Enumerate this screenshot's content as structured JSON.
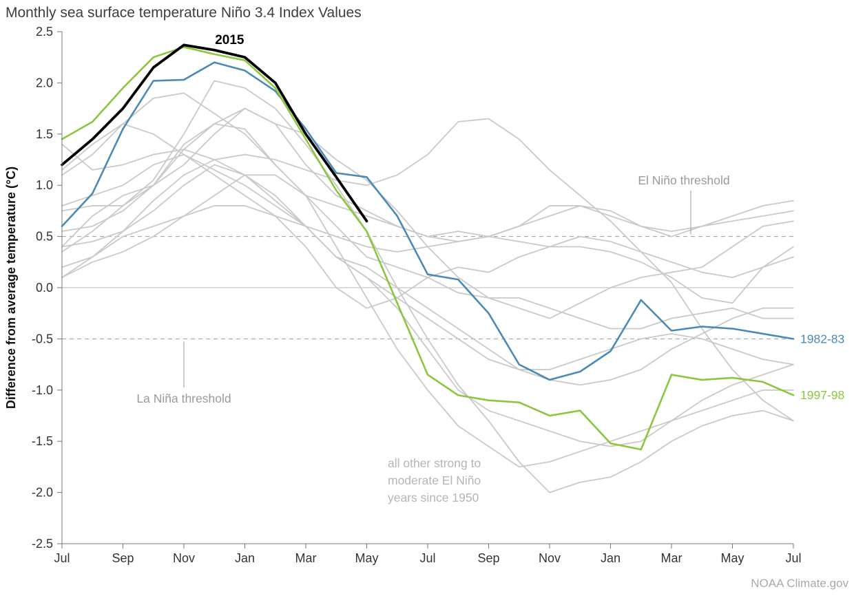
{
  "title": "Monthly sea surface temperature Niño 3.4 Index Values",
  "y_axis_label": "Difference from average temperature (°C)",
  "attribution": "NOAA Climate.gov",
  "colors": {
    "line_2015": "#000000",
    "line_1982": "#4a8ab5",
    "line_1997": "#8cc63f",
    "line_other": "#c9c9c9",
    "axis": "#777777",
    "tick_text": "#333333",
    "zero_line": "#c6c6c6",
    "threshold_line": "#9a9a9a",
    "annotation_gray": "#9a9a9a",
    "note_gray": "#b5b5b5"
  },
  "chart_data": {
    "type": "line",
    "title": "Monthly sea surface temperature Niño 3.4 Index Values",
    "xlabel": "",
    "ylabel": "Difference from average temperature (°C)",
    "months_span": 25,
    "x_tick_positions": [
      0,
      2,
      4,
      6,
      8,
      10,
      12,
      14,
      16,
      18,
      20,
      22,
      24
    ],
    "x_tick_labels": [
      "Jul",
      "Sep",
      "Nov",
      "Jan",
      "Mar",
      "May",
      "Jul",
      "Sep",
      "Nov",
      "Jan",
      "Mar",
      "May",
      "Jul"
    ],
    "y_tick_labels": [
      "2.5",
      "2.0",
      "1.5",
      "1.0",
      "0.5",
      "0.0",
      "-0.5",
      "-1.0",
      "-1.5",
      "-2.0",
      "-2.5"
    ],
    "y_tick_values": [
      2.5,
      2.0,
      1.5,
      1.0,
      0.5,
      0.0,
      -0.5,
      -1.0,
      -1.5,
      -2.0,
      -2.5
    ],
    "ylim": [
      -2.5,
      2.5
    ],
    "zero_line_value": 0,
    "grid": false,
    "thresholds": {
      "el_nino": {
        "value": 0.5,
        "label": "El Niño threshold"
      },
      "la_nina": {
        "value": -0.5,
        "label": "La Niña threshold"
      }
    },
    "note": [
      "all other strong to",
      "moderate El Niño",
      "years since 1950"
    ],
    "series": [
      {
        "name": "other-1",
        "label": "",
        "role": "other",
        "values": [
          0.35,
          0.55,
          0.8,
          1.05,
          1.5,
          2.02,
          1.95,
          1.75,
          1.4,
          1.0,
          0.55,
          0.0,
          -0.5,
          -0.95,
          -1.3,
          -1.7,
          -2.0,
          -1.9,
          -1.85,
          -1.7,
          -1.5,
          -1.35,
          -1.25,
          -1.2,
          -1.3
        ]
      },
      {
        "name": "other-2",
        "label": "",
        "role": "other",
        "values": [
          0.4,
          0.7,
          0.9,
          1.0,
          1.2,
          1.5,
          1.75,
          1.6,
          1.2,
          0.9,
          0.75,
          0.6,
          0.5,
          0.55,
          0.5,
          0.45,
          0.4,
          0.5,
          0.45,
          0.35,
          0.25,
          0.15,
          0.1,
          0.2,
          0.3
        ]
      },
      {
        "name": "other-3",
        "label": "",
        "role": "other",
        "values": [
          0.1,
          0.3,
          0.55,
          0.85,
          1.1,
          1.25,
          1.3,
          1.25,
          1.15,
          1.05,
          1.0,
          1.1,
          1.3,
          1.62,
          1.65,
          1.45,
          1.15,
          0.9,
          0.65,
          0.35,
          0.05,
          -0.4,
          -0.8,
          -1.1,
          -1.3
        ]
      },
      {
        "name": "other-4",
        "label": "",
        "role": "other",
        "values": [
          0.75,
          0.8,
          0.8,
          1.0,
          1.4,
          1.6,
          1.75,
          1.6,
          1.5,
          1.25,
          1.05,
          0.75,
          0.4,
          0.1,
          -0.1,
          -0.2,
          -0.3,
          -0.15,
          0.0,
          0.1,
          0.15,
          0.2,
          0.4,
          0.6,
          0.65
        ]
      },
      {
        "name": "other-5",
        "label": "",
        "role": "other",
        "values": [
          1.4,
          1.15,
          1.2,
          1.3,
          1.35,
          1.25,
          1.1,
          0.9,
          0.6,
          0.3,
          0.1,
          -0.1,
          -0.3,
          -0.5,
          -0.7,
          -0.8,
          -0.8,
          -0.7,
          -0.6,
          -0.5,
          -0.45,
          -0.5,
          -0.6,
          -0.7,
          -0.75
        ]
      },
      {
        "name": "other-6",
        "label": "",
        "role": "other",
        "values": [
          1.1,
          1.3,
          1.6,
          1.85,
          1.9,
          1.7,
          1.5,
          1.2,
          0.9,
          0.6,
          0.3,
          0.2,
          0.1,
          -0.05,
          -0.1,
          -0.1,
          -0.2,
          -0.3,
          -0.4,
          -0.4,
          -0.3,
          -0.25,
          -0.2,
          -0.3,
          -0.3
        ]
      },
      {
        "name": "other-7",
        "label": "",
        "role": "other",
        "values": [
          0.8,
          0.9,
          1.0,
          1.2,
          1.3,
          1.1,
          0.9,
          0.7,
          0.4,
          0.0,
          -0.2,
          -0.1,
          0.1,
          0.2,
          0.15,
          0.3,
          0.4,
          0.4,
          0.35,
          0.25,
          0.1,
          -0.1,
          -0.15,
          0.2,
          0.4
        ]
      },
      {
        "name": "other-8",
        "label": "",
        "role": "other",
        "values": [
          0.55,
          0.6,
          0.75,
          1.0,
          1.35,
          1.6,
          1.55,
          1.2,
          0.9,
          0.4,
          -0.1,
          -0.6,
          -1.0,
          -1.35,
          -1.55,
          -1.75,
          -1.7,
          -1.6,
          -1.5,
          -1.4,
          -1.3,
          -1.2,
          -1.1,
          -1.0,
          -1.0
        ]
      },
      {
        "name": "other-9",
        "label": "",
        "role": "other",
        "values": [
          0.4,
          0.45,
          0.55,
          0.75,
          1.0,
          1.2,
          1.1,
          0.85,
          0.6,
          0.3,
          0.2,
          0.0,
          -0.2,
          -0.4,
          -0.6,
          -0.8,
          -0.9,
          -0.95,
          -0.9,
          -0.8,
          -0.6,
          -0.45,
          -0.3,
          -0.2,
          -0.2
        ]
      },
      {
        "name": "other-10",
        "label": "",
        "role": "other",
        "values": [
          0.1,
          0.25,
          0.35,
          0.5,
          0.7,
          0.9,
          1.1,
          1.1,
          0.9,
          0.8,
          0.7,
          0.6,
          0.5,
          0.45,
          0.5,
          0.6,
          0.7,
          0.8,
          0.75,
          0.6,
          0.5,
          0.6,
          0.7,
          0.8,
          0.85
        ]
      },
      {
        "name": "other-11",
        "label": "",
        "role": "other",
        "values": [
          0.2,
          0.3,
          0.5,
          0.6,
          0.7,
          0.8,
          0.8,
          0.7,
          0.6,
          0.5,
          0.4,
          0.35,
          0.4,
          0.45,
          0.5,
          0.6,
          0.8,
          0.8,
          0.7,
          0.6,
          0.55,
          0.6,
          0.65,
          0.7,
          0.75
        ]
      },
      {
        "name": "other-12",
        "label": "",
        "role": "other",
        "values": [
          1.15,
          1.4,
          1.6,
          1.5,
          1.3,
          1.15,
          1.0,
          0.8,
          0.6,
          0.3,
          0.1,
          -0.2,
          -0.6,
          -1.0,
          -1.2,
          -1.3,
          -1.4,
          -1.5,
          -1.55,
          -1.5,
          -1.3,
          -1.1,
          -0.95,
          -0.85,
          -0.75
        ]
      },
      {
        "name": "1982-83",
        "label": "1982-83",
        "role": "blue",
        "values": [
          0.6,
          0.92,
          1.55,
          2.02,
          2.03,
          2.2,
          2.12,
          1.92,
          1.55,
          1.12,
          1.08,
          0.7,
          0.13,
          0.08,
          -0.25,
          -0.75,
          -0.9,
          -0.82,
          -0.62,
          -0.12,
          -0.42,
          -0.38,
          -0.4,
          -0.45,
          -0.5
        ]
      },
      {
        "name": "1997-98",
        "label": "1997-98",
        "role": "green",
        "values": [
          1.45,
          1.62,
          1.95,
          2.25,
          2.35,
          2.28,
          2.22,
          1.95,
          1.45,
          0.95,
          0.55,
          -0.15,
          -0.85,
          -1.05,
          -1.1,
          -1.12,
          -1.25,
          -1.2,
          -1.52,
          -1.58,
          -0.85,
          -0.9,
          -0.88,
          -0.92,
          -1.05
        ]
      },
      {
        "name": "2015",
        "label": "2015",
        "role": "black",
        "values": [
          1.2,
          1.45,
          1.75,
          2.15,
          2.37,
          2.32,
          2.25,
          2.0,
          1.5,
          1.08,
          0.65
        ]
      }
    ]
  }
}
